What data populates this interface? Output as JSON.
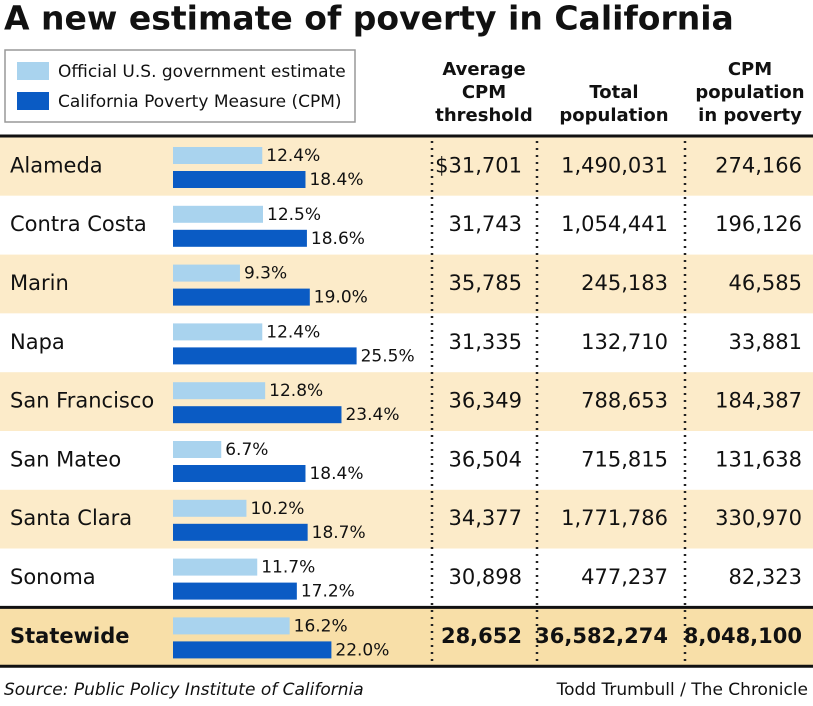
{
  "chart_data": {
    "type": "bar",
    "title": "A new estimate of poverty in California",
    "categories": [
      "Alameda",
      "Contra Costa",
      "Marin",
      "Napa",
      "San Francisco",
      "San Mateo",
      "Santa Clara",
      "Sonoma",
      "Statewide"
    ],
    "series": [
      {
        "name": "Official U.S. government estimate",
        "color": "#a9d3ee",
        "values": [
          12.4,
          12.5,
          9.3,
          12.4,
          12.8,
          6.7,
          10.2,
          11.7,
          16.2
        ],
        "value_labels": [
          "12.4%",
          "12.5%",
          "9.3%",
          "12.4%",
          "12.8%",
          "6.7%",
          "10.2%",
          "11.7%",
          "16.2%"
        ]
      },
      {
        "name": "California Poverty Measure (CPM)",
        "color": "#0a5bc4",
        "values": [
          18.4,
          18.6,
          19.0,
          25.5,
          23.4,
          18.4,
          18.7,
          17.2,
          22.0
        ],
        "value_labels": [
          "18.4%",
          "18.6%",
          "19.0%",
          "25.5%",
          "23.4%",
          "18.4%",
          "18.7%",
          "17.2%",
          "22.0%"
        ]
      }
    ],
    "columns": [
      [
        "Average",
        "CPM",
        "threshold"
      ],
      [
        "Total",
        "population"
      ],
      [
        "CPM",
        "population",
        "in poverty"
      ]
    ],
    "rows": [
      [
        "$31,701",
        "1,490,031",
        "274,166"
      ],
      [
        "31,743",
        "1,054,441",
        "196,126"
      ],
      [
        "35,785",
        "245,183",
        "46,585"
      ],
      [
        "31,335",
        "132,710",
        "33,881"
      ],
      [
        "36,349",
        "788,653",
        "184,387"
      ],
      [
        "36,504",
        "715,815",
        "131,638"
      ],
      [
        "34,377",
        "1,771,786",
        "330,970"
      ],
      [
        "30,898",
        "477,237",
        "82,323"
      ],
      [
        "28,652",
        "36,582,274",
        "8,048,100"
      ]
    ],
    "source": "Source: Public Policy Institute of California",
    "credit": "Todd Trumbull / The Chronicle"
  }
}
